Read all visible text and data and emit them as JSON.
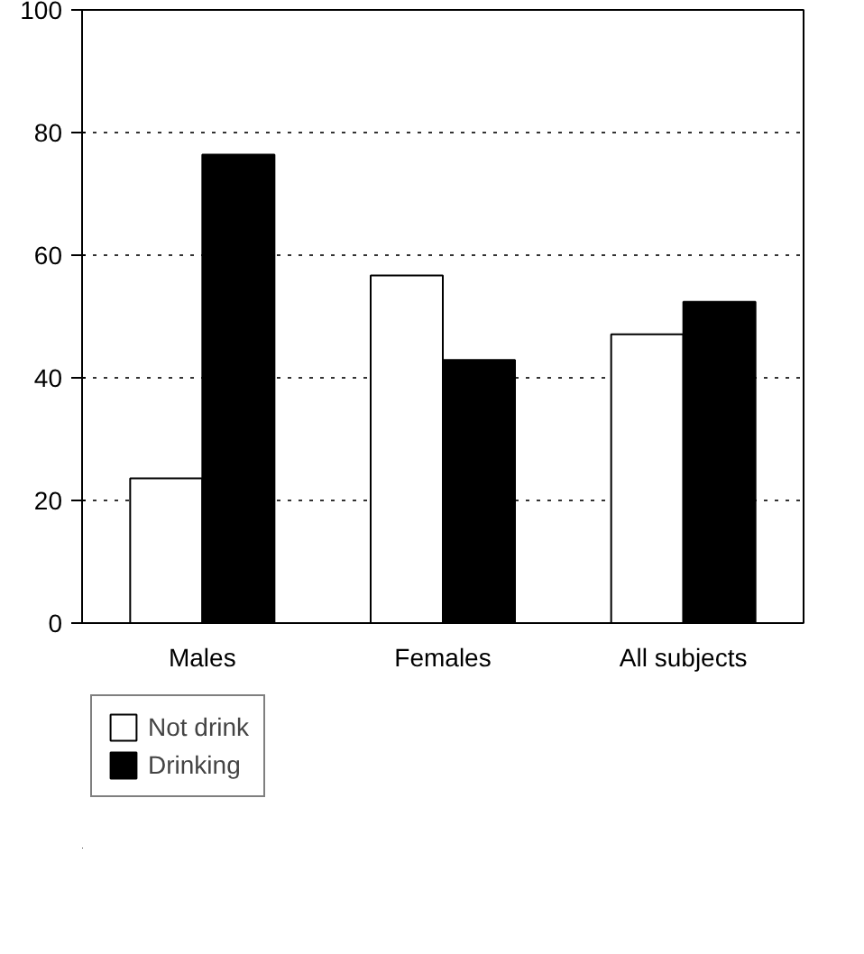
{
  "chart_data": {
    "type": "bar",
    "categories": [
      "Males",
      "Females",
      "All subjects"
    ],
    "series": [
      {
        "name": "Not drink",
        "color": "#ffffff",
        "values": [
          23.6,
          56.7,
          47.1
        ]
      },
      {
        "name": "Drinking",
        "color": "#000000",
        "values": [
          76.4,
          42.9,
          52.4
        ]
      }
    ],
    "ylim": [
      0,
      100
    ],
    "yticks": [
      0,
      20,
      40,
      60,
      80,
      100
    ],
    "grid": "y",
    "legend": "bottom left"
  }
}
